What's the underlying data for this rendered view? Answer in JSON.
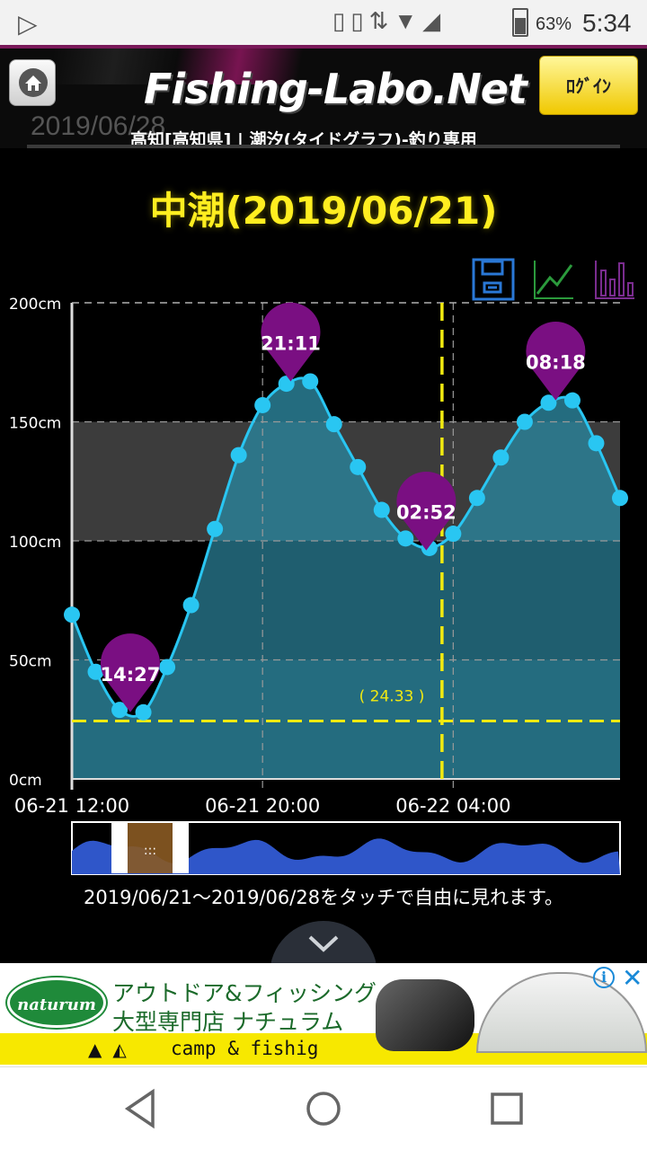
{
  "status_bar": {
    "battery": "63%",
    "battery_level": 0.63,
    "time": "5:34"
  },
  "header": {
    "logo": "Fishing-Labo.Net",
    "ghost_date": "2019/06/28",
    "subtitle": "高知[高知県] | 潮汐(タイドグラフ)-釣り専用",
    "login_label": "ﾛｸﾞｲﾝ"
  },
  "main": {
    "tide_title": "中潮(2019/06/21)",
    "hint": "2019/06/21～2019/06/28をタッチで自由に見れます。"
  },
  "chart_data": {
    "type": "area",
    "y_unit": "cm",
    "ylim": [
      0,
      200
    ],
    "y_ticks": [
      "0cm",
      "50cm",
      "100cm",
      "150cm",
      "200cm"
    ],
    "y_tick_values": [
      0,
      50,
      100,
      150,
      200
    ],
    "x_ticks": [
      "06-21 12:00",
      "06-21 20:00",
      "06-22 04:00"
    ],
    "x_tick_hours": [
      0,
      8,
      16
    ],
    "x_range_hours": [
      0,
      23
    ],
    "points": [
      {
        "h": 0,
        "v": 69
      },
      {
        "h": 1,
        "v": 45
      },
      {
        "h": 2,
        "v": 29
      },
      {
        "h": 3,
        "v": 28
      },
      {
        "h": 4,
        "v": 47
      },
      {
        "h": 5,
        "v": 73
      },
      {
        "h": 6,
        "v": 105
      },
      {
        "h": 7,
        "v": 136
      },
      {
        "h": 8,
        "v": 157
      },
      {
        "h": 9,
        "v": 166
      },
      {
        "h": 10,
        "v": 167
      },
      {
        "h": 11,
        "v": 149
      },
      {
        "h": 12,
        "v": 131
      },
      {
        "h": 13,
        "v": 113
      },
      {
        "h": 14,
        "v": 101
      },
      {
        "h": 15,
        "v": 97
      },
      {
        "h": 16,
        "v": 103
      },
      {
        "h": 17,
        "v": 118
      },
      {
        "h": 18,
        "v": 135
      },
      {
        "h": 19,
        "v": 150
      },
      {
        "h": 20,
        "v": 158
      },
      {
        "h": 21,
        "v": 159
      },
      {
        "h": 22,
        "v": 141
      },
      {
        "h": 23,
        "v": 118
      }
    ],
    "extremes": [
      {
        "label": "14:27",
        "h": 2.45,
        "v": 28
      },
      {
        "label": "21:11",
        "h": 9.18,
        "v": 167
      },
      {
        "label": "02:52",
        "h": 14.87,
        "v": 96
      },
      {
        "label": "08:18",
        "h": 20.3,
        "v": 159
      }
    ],
    "reference_line": {
      "value": 24.33,
      "label": "( 24.33 )"
    },
    "current_time_hours": 15.53,
    "highlight_band": [
      100,
      150
    ],
    "colors": {
      "line": "#29c6f2",
      "fill": "#2a7f95",
      "marker": "#7a0f82",
      "reference": "#f2ea10",
      "band": "#3c3c3c"
    }
  },
  "navbar": {
    "icons": [
      "back-icon",
      "home-circle-icon",
      "recents-icon"
    ]
  },
  "ad": {
    "logo_text": "naturum",
    "line1": "アウトドア&フィッシング",
    "line2": "大型専門店 ナチュラム",
    "line3": "camp & fishig"
  }
}
